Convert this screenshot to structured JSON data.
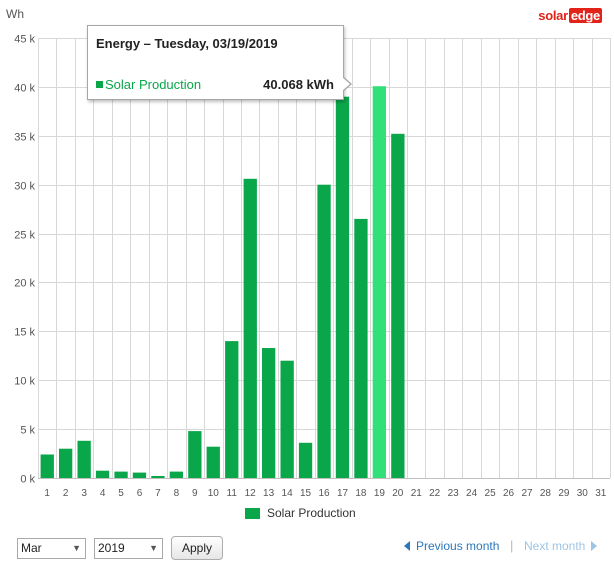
{
  "chart_data": {
    "type": "bar",
    "ylabel": "Wh",
    "ylim": [
      0,
      45000
    ],
    "yticks": [
      0,
      5000,
      10000,
      15000,
      20000,
      25000,
      30000,
      35000,
      40000,
      45000
    ],
    "ytick_labels": [
      "0 k",
      "5 k",
      "10 k",
      "15 k",
      "20 k",
      "25 k",
      "30 k",
      "35 k",
      "40 k",
      "45 k"
    ],
    "categories": [
      "1",
      "2",
      "3",
      "4",
      "5",
      "6",
      "7",
      "8",
      "9",
      "10",
      "11",
      "12",
      "13",
      "14",
      "15",
      "16",
      "17",
      "18",
      "19",
      "20",
      "21",
      "22",
      "23",
      "24",
      "25",
      "26",
      "27",
      "28",
      "29",
      "30",
      "31"
    ],
    "series": [
      {
        "name": "Solar Production",
        "color": "#0aa64a",
        "highlight_color": "#32e07a",
        "highlight_index": 18,
        "values": [
          2400,
          3000,
          3800,
          750,
          650,
          550,
          200,
          650,
          4800,
          3200,
          14000,
          30600,
          13300,
          12000,
          3600,
          30000,
          39000,
          26500,
          40068,
          35200,
          null,
          null,
          null,
          null,
          null,
          null,
          null,
          null,
          null,
          null,
          null
        ]
      }
    ],
    "grid": true,
    "legend": "bottom"
  },
  "logo": {
    "part1": "solar",
    "part2": "edge"
  },
  "tooltip": {
    "title": "Energy – Tuesday, 03/19/2019",
    "series": "Solar Production",
    "value": "40.068 kWh"
  },
  "legend": {
    "label": "Solar Production"
  },
  "controls": {
    "month": "Mar",
    "year": "2019",
    "apply": "Apply",
    "previous": "Previous month",
    "next": "Next month"
  },
  "colors": {
    "grid": "#d8d8d8",
    "axis_text": "#555555",
    "link": "#2a77bb",
    "link_disabled": "#9ec4e3"
  }
}
